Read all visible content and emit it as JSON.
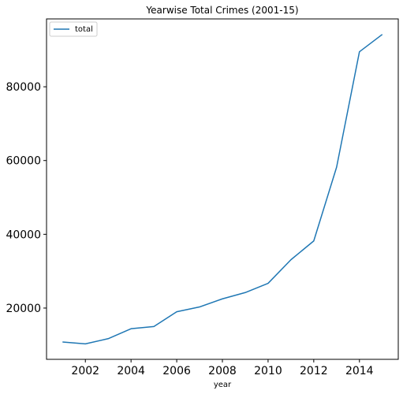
{
  "chart_data": {
    "type": "line",
    "title": "Yearwise Total Crimes (2001-15)",
    "xlabel": "year",
    "ylabel": "",
    "x": [
      2001,
      2002,
      2003,
      2004,
      2005,
      2006,
      2007,
      2008,
      2009,
      2010,
      2011,
      2012,
      2013,
      2014,
      2015
    ],
    "series": [
      {
        "name": "total",
        "color": "#1f77b4",
        "values": [
          10800,
          10300,
          11700,
          14400,
          15000,
          19000,
          20300,
          22500,
          24200,
          26700,
          33100,
          38200,
          58200,
          89500,
          94200
        ]
      }
    ],
    "xlim": [
      2000.3,
      2015.7
    ],
    "ylim": [
      6100,
      98400
    ],
    "xticks": [
      2002,
      2004,
      2006,
      2008,
      2010,
      2012,
      2014
    ],
    "xtick_labels": [
      "2002",
      "2004",
      "2006",
      "2008",
      "2010",
      "2012",
      "2014"
    ],
    "yticks": [
      20000,
      40000,
      60000,
      80000
    ],
    "ytick_labels": [
      "20000",
      "40000",
      "60000",
      "80000"
    ],
    "grid": false,
    "legend_position": "top-left"
  }
}
